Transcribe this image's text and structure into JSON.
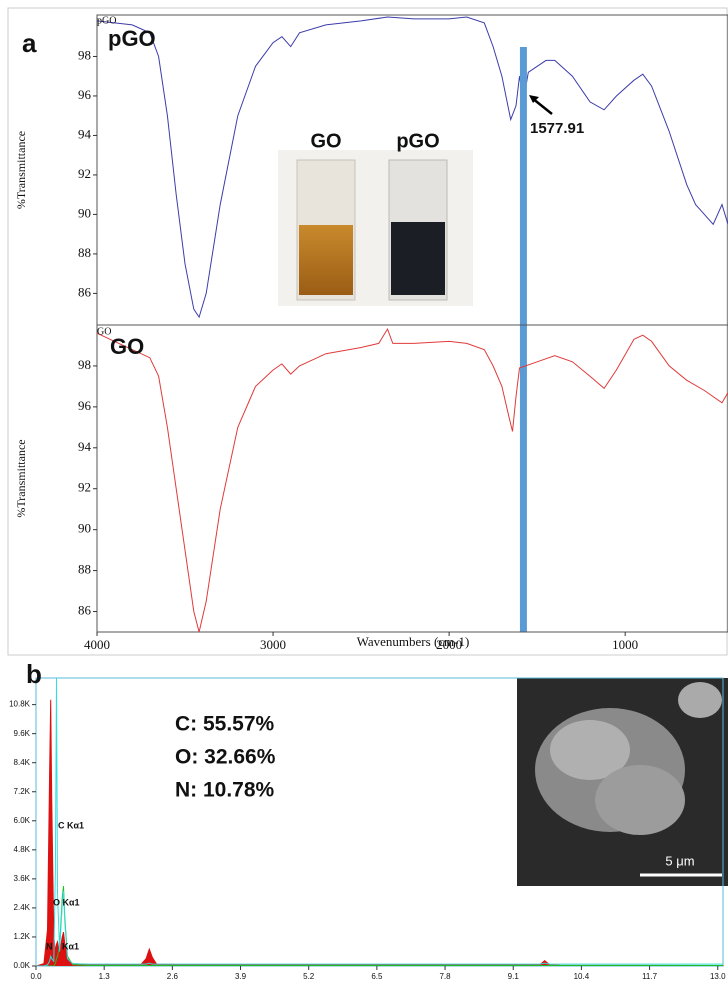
{
  "chart_data": [
    {
      "type": "line",
      "panel_label": "a",
      "ylabel": "%Transmittance",
      "x": [
        4000,
        3900,
        3800,
        3700,
        3650,
        3600,
        3550,
        3500,
        3450,
        3420,
        3380,
        3300,
        3200,
        3100,
        3000,
        2950,
        2900,
        2850,
        2700,
        2500,
        2350,
        2200,
        2000,
        1900,
        1800,
        1750,
        1700,
        1650,
        1620,
        1600,
        1577,
        1550,
        1500,
        1450,
        1400,
        1300,
        1200,
        1120,
        1050,
        950,
        900,
        850,
        750,
        650,
        600,
        550,
        500,
        450,
        416
      ],
      "series": [
        {
          "name": "pGO",
          "color": "#3c3caa",
          "values": [
            99.8,
            99.7,
            99.6,
            99.2,
            98,
            95,
            91,
            87.5,
            85.2,
            84.8,
            86,
            90.5,
            95,
            97.5,
            98.7,
            99.0,
            98.5,
            99.2,
            99.6,
            99.8,
            100,
            99.9,
            99.9,
            100,
            99.7,
            98.5,
            97,
            94.8,
            95.5,
            97,
            95.8,
            97.2,
            97.5,
            97.8,
            97.8,
            97.0,
            95.7,
            95.3,
            96,
            96.8,
            97.1,
            96.5,
            94.2,
            91.5,
            90.5,
            90,
            89.5,
            90.5,
            89.5
          ]
        }
      ],
      "xlim": [
        4000,
        416
      ],
      "ylim": [
        84.4,
        100.1
      ],
      "yticks": [
        86,
        88,
        90,
        92,
        94,
        96,
        98
      ],
      "marker_x": 1577.91,
      "marker_color": "#5b9bd5",
      "inset_labels": [
        "GO",
        "pGO"
      ]
    },
    {
      "type": "line",
      "ylabel": "%Transmittance",
      "xlabel": "Wavenumbers (cm-1)",
      "x": [
        4000,
        3900,
        3800,
        3700,
        3650,
        3600,
        3550,
        3500,
        3450,
        3420,
        3380,
        3300,
        3200,
        3100,
        3000,
        2950,
        2900,
        2850,
        2700,
        2500,
        2400,
        2350,
        2320,
        2200,
        2000,
        1900,
        1800,
        1750,
        1700,
        1660,
        1640,
        1620,
        1600,
        1500,
        1400,
        1300,
        1200,
        1120,
        1050,
        950,
        900,
        850,
        750,
        650,
        550,
        450,
        416
      ],
      "series": [
        {
          "name": "GO",
          "color": "#e03a3a",
          "values": [
            99.6,
            99.2,
            98.8,
            98.4,
            97.5,
            95,
            92,
            89,
            86,
            85,
            86.5,
            91,
            95,
            97,
            97.8,
            98.1,
            97.6,
            98,
            98.6,
            98.9,
            99.1,
            99.8,
            99.1,
            99.1,
            99.2,
            99.1,
            98.8,
            98,
            97,
            95.5,
            94.8,
            96.5,
            97.9,
            98.2,
            98.5,
            98.2,
            97.5,
            96.9,
            97.8,
            99.3,
            99.5,
            99.2,
            98,
            97.3,
            96.8,
            96.2,
            96.7
          ]
        }
      ],
      "xlim": [
        4000,
        416
      ],
      "ylim": [
        85,
        100
      ],
      "yticks": [
        86,
        88,
        90,
        92,
        94,
        96,
        98
      ],
      "xticks": [
        4000,
        3000,
        2000,
        1000
      ]
    },
    {
      "type": "line",
      "panel_label": "b",
      "x": [
        0,
        0.15,
        0.22,
        0.26,
        0.28,
        0.3,
        0.34,
        0.37,
        0.39,
        0.41,
        0.45,
        0.5,
        0.525,
        0.55,
        0.6,
        0.7,
        1.0,
        2.0,
        2.1,
        2.16,
        2.22,
        2.3,
        3.0,
        5.0,
        9.6,
        9.7,
        9.8,
        10.0,
        13.1
      ],
      "series": [
        {
          "color": "#dd1111",
          "fill": true,
          "values": [
            0,
            100,
            1500,
            8000,
            11000,
            7000,
            1200,
            600,
            900,
            1000,
            500,
            1200,
            1400,
            900,
            300,
            100,
            60,
            60,
            300,
            700,
            350,
            80,
            50,
            40,
            40,
            220,
            40,
            30,
            20
          ]
        },
        {
          "color": "#22bb22",
          "values": [
            0,
            0,
            0,
            0,
            0,
            0,
            0,
            100,
            300,
            400,
            800,
            2800,
            3300,
            2000,
            400,
            50,
            20,
            20,
            20,
            20,
            20,
            20,
            20,
            20,
            20,
            20,
            20,
            20,
            20
          ]
        },
        {
          "color": "#33dddd",
          "values": [
            0,
            0,
            50,
            200,
            400,
            300,
            200,
            4000,
            11900,
            3000,
            600,
            2500,
            3100,
            1800,
            300,
            100,
            80,
            80,
            80,
            120,
            80,
            80,
            80,
            80,
            80,
            120,
            80,
            80,
            80
          ]
        }
      ],
      "xlim": [
        0,
        13.1
      ],
      "ylim": [
        0,
        11900
      ],
      "xticks": [
        {
          "value": 0,
          "label": "0.0"
        },
        {
          "value": 1.3,
          "label": "1.3"
        },
        {
          "value": 2.6,
          "label": "2.6"
        },
        {
          "value": 3.9,
          "label": "3.9"
        },
        {
          "value": 5.2,
          "label": "5.2"
        },
        {
          "value": 6.5,
          "label": "6.5"
        },
        {
          "value": 7.8,
          "label": "7.8"
        },
        {
          "value": 9.1,
          "label": "9.1"
        },
        {
          "value": 10.4,
          "label": "10.4"
        },
        {
          "value": 11.7,
          "label": "11.7"
        },
        {
          "value": 13.0,
          "label": "13.0"
        }
      ],
      "yticks": [
        {
          "value": 0,
          "label": "0.0K"
        },
        {
          "value": 1200,
          "label": "1.2K"
        },
        {
          "value": 2400,
          "label": "2.4K"
        },
        {
          "value": 3600,
          "label": "3.6K"
        },
        {
          "value": 4800,
          "label": "4.8K"
        },
        {
          "value": 6000,
          "label": "6.0K"
        },
        {
          "value": 7200,
          "label": "7.2K"
        },
        {
          "value": 8400,
          "label": "8.4K"
        },
        {
          "value": 9600,
          "label": "9.6K"
        },
        {
          "value": 10800,
          "label": "10.8K"
        }
      ],
      "peak_labels": [
        "C Kα1",
        "O Kα1",
        "N",
        "Kα1"
      ],
      "composition": [
        "C: 55.57%",
        "O: 32.66%",
        "N: 10.78%"
      ],
      "scale_bar": "5 μm"
    }
  ]
}
